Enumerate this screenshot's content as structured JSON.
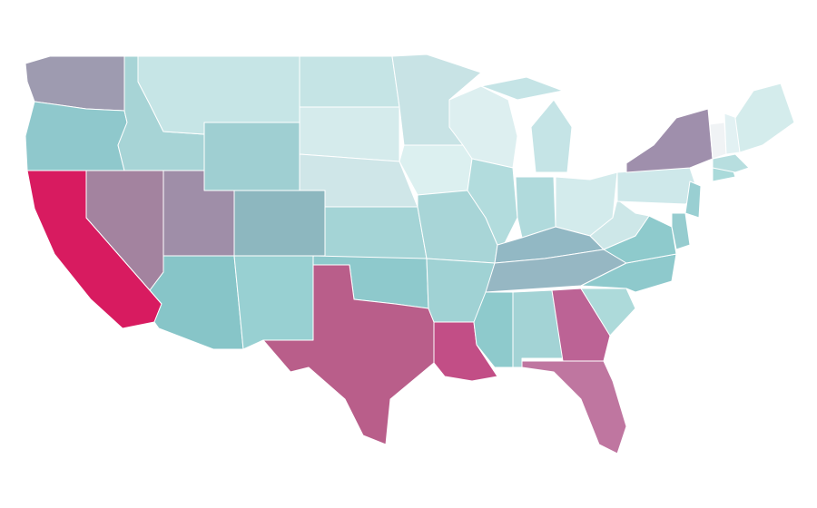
{
  "map": {
    "regions": [
      {
        "color": "#9e9bb0"
      },
      {
        "color": "#8fc8cc"
      },
      {
        "color": "#d81b60"
      },
      {
        "color": "#a3839f"
      },
      {
        "color": "#a7d4d6"
      },
      {
        "color": "#c6e5e6"
      },
      {
        "color": "#9fcfd2"
      },
      {
        "color": "#9f8ea8"
      },
      {
        "color": "#8db7bf"
      },
      {
        "color": "#87c5c8"
      },
      {
        "color": "#98d0d2"
      },
      {
        "color": "#c5e4e5"
      },
      {
        "color": "#d5ebec"
      },
      {
        "color": "#cfe6e8"
      },
      {
        "color": "#a4d4d6"
      },
      {
        "color": "#8ec9cc"
      },
      {
        "color": "#b95e8a"
      },
      {
        "color": "#c8e3e5"
      },
      {
        "color": "#dcf0f0"
      },
      {
        "color": "#a8d5d7"
      },
      {
        "color": "#a0d2d4"
      },
      {
        "color": "#c24e86"
      },
      {
        "color": "#ddeff0"
      },
      {
        "color": "#b2dcdd"
      },
      {
        "color": "#c5e4e6"
      },
      {
        "color": "#c5e4e6"
      },
      {
        "color": "#b0dadc"
      },
      {
        "color": "#d3ebec"
      },
      {
        "color": "#92b8c4"
      },
      {
        "color": "#96b7c3"
      },
      {
        "color": "#8ecacc"
      },
      {
        "color": "#a3d3d5"
      },
      {
        "color": "#bc6395"
      },
      {
        "color": "#bf76a0"
      },
      {
        "color": "#addada"
      },
      {
        "color": "#8ec9cc"
      },
      {
        "color": "#8ecacc"
      },
      {
        "color": "#cde7e8"
      },
      {
        "color": "#cee8ea"
      },
      {
        "color": "#9f8fac"
      },
      {
        "color": "#99cfd2"
      },
      {
        "color": "#96cccf"
      },
      {
        "color": "#aadada"
      },
      {
        "color": "#b7dedf"
      },
      {
        "color": "#f0f3f5"
      },
      {
        "color": "#e2f1f3"
      },
      {
        "color": "#d4ecec"
      }
    ]
  }
}
